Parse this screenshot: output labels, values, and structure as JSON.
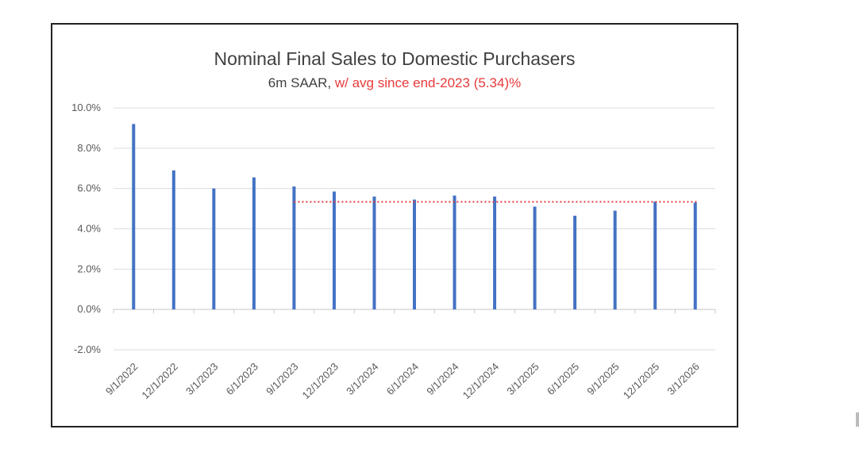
{
  "title": "Nominal Final Sales to Domestic Purchasers",
  "subtitle_main": "6m SAAR, ",
  "subtitle_highlight": "w/ avg since end-2023 (5.34)%",
  "chart_data": {
    "type": "bar",
    "title": "Nominal Final Sales to Domestic Purchasers",
    "subtitle": "6m SAAR, w/ avg since end-2023 (5.34)%",
    "categories": [
      "9/1/2022",
      "12/1/2022",
      "3/1/2023",
      "6/1/2023",
      "9/1/2023",
      "12/1/2023",
      "3/1/2024",
      "6/1/2024",
      "9/1/2024",
      "12/1/2024",
      "3/1/2025",
      "6/1/2025",
      "9/1/2025",
      "12/1/2025",
      "3/1/2026"
    ],
    "series": [
      {
        "values": [
          9.2,
          6.9,
          6.0,
          6.55,
          6.1,
          5.85,
          5.6,
          5.45,
          5.65,
          5.6,
          5.1,
          4.65,
          4.9,
          5.35,
          5.3
        ]
      }
    ],
    "reference_line": {
      "value": 5.34,
      "start_category": "9/1/2023",
      "end_category": "3/1/2026",
      "style": "dotted",
      "color": "#e8393a"
    },
    "ylim": [
      -2.0,
      10.0
    ],
    "yticks": [
      "-2.0%",
      "0.0%",
      "2.0%",
      "4.0%",
      "6.0%",
      "8.0%",
      "10.0%"
    ],
    "ytick_values": [
      -2,
      0,
      2,
      4,
      6,
      8,
      10
    ],
    "bar_color": "#4472c4",
    "grid": true,
    "xlabel": "",
    "ylabel": ""
  }
}
